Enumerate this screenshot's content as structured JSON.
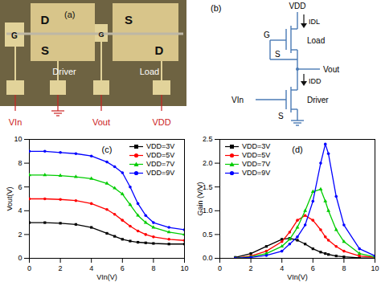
{
  "photo": {
    "label": "(a)",
    "driver": {
      "name": "Driver",
      "drain": "D",
      "source": "S",
      "gate": "G"
    },
    "load": {
      "name": "Load",
      "source": "S",
      "drain": "D",
      "gate": "G"
    },
    "terminals": {
      "input": "VIn",
      "output": "Vout",
      "supply": "VDD"
    }
  },
  "circuit": {
    "label": "(b)",
    "supply": "VDD",
    "load_current": "IDL",
    "load": {
      "name": "Load",
      "gate": "G",
      "source": "S"
    },
    "output": "Vout",
    "driver_current": "IDD",
    "driver": {
      "name": "Driver",
      "source": "S"
    },
    "input": "VIn"
  },
  "chart_data": [
    {
      "type": "line",
      "title": "(c)",
      "x_label": "VIn(V)",
      "y_label": "Vout(V)",
      "xlim": [
        0,
        10
      ],
      "xticks": [
        0,
        2,
        4,
        6,
        8,
        10
      ],
      "ylim": [
        0,
        10
      ],
      "yticks": [
        0,
        2,
        4,
        6,
        8,
        10
      ],
      "legend": "upper right",
      "x": [
        0,
        1,
        2,
        3,
        4,
        5,
        5.5,
        6,
        6.5,
        7,
        7.5,
        8,
        9,
        10
      ],
      "series": [
        {
          "name": "VDD=3V",
          "color": "#000000",
          "marker": "square",
          "values": [
            3.0,
            3.0,
            2.95,
            2.85,
            2.6,
            2.1,
            1.85,
            1.6,
            1.45,
            1.35,
            1.3,
            1.25,
            1.2,
            1.2
          ]
        },
        {
          "name": "VDD=5V",
          "color": "#ff0000",
          "marker": "circle",
          "values": [
            5.0,
            5.0,
            4.95,
            4.85,
            4.6,
            4.1,
            3.7,
            3.2,
            2.7,
            2.3,
            2.0,
            1.8,
            1.6,
            1.5
          ]
        },
        {
          "name": "VDD=7V",
          "color": "#00cc00",
          "marker": "triangle",
          "values": [
            7.0,
            7.0,
            6.95,
            6.85,
            6.7,
            6.3,
            5.9,
            5.4,
            4.5,
            3.6,
            3.0,
            2.6,
            2.2,
            2.0
          ]
        },
        {
          "name": "VDD=9V",
          "color": "#0000ff",
          "marker": "circle",
          "values": [
            9.0,
            9.0,
            8.9,
            8.8,
            8.6,
            8.1,
            7.7,
            7.2,
            6.0,
            4.6,
            3.6,
            3.0,
            2.6,
            2.4
          ]
        }
      ]
    },
    {
      "type": "line",
      "title": "(d)",
      "x_label": "VIn(V)",
      "y_label": "Gain (V/V)",
      "xlim": [
        0,
        10
      ],
      "xticks": [
        0,
        2,
        4,
        6,
        8,
        10
      ],
      "ylim": [
        0,
        2.5
      ],
      "yticks": [
        {
          "value": 0,
          "label": "0.0"
        },
        0.5,
        {
          "value": 1,
          "label": "1.0"
        },
        1.5,
        {
          "value": 2,
          "label": "2.0"
        },
        2.5
      ],
      "legend": "upper left",
      "x": [
        1,
        2,
        3,
        4,
        4.5,
        5,
        5.5,
        6,
        6.5,
        6.8,
        7,
        7.5,
        8,
        9,
        10
      ],
      "series": [
        {
          "name": "VDD=3V",
          "color": "#000000",
          "marker": "square",
          "values": [
            0.02,
            0.1,
            0.25,
            0.4,
            0.42,
            0.38,
            0.3,
            0.2,
            0.13,
            0.1,
            0.08,
            0.05,
            0.03,
            0.01,
            0.0
          ]
        },
        {
          "name": "VDD=5V",
          "color": "#ff0000",
          "marker": "circle",
          "values": [
            0.0,
            0.05,
            0.15,
            0.35,
            0.55,
            0.8,
            0.9,
            0.8,
            0.6,
            0.45,
            0.38,
            0.25,
            0.15,
            0.05,
            0.02
          ]
        },
        {
          "name": "VDD=7V",
          "color": "#00cc00",
          "marker": "triangle",
          "values": [
            0.0,
            0.03,
            0.1,
            0.25,
            0.4,
            0.65,
            1.0,
            1.4,
            1.45,
            1.2,
            1.0,
            0.6,
            0.35,
            0.1,
            0.03
          ]
        },
        {
          "name": "VDD=9V",
          "color": "#0000ff",
          "marker": "circle",
          "values": [
            0.0,
            0.02,
            0.06,
            0.15,
            0.3,
            0.45,
            0.7,
            1.2,
            2.0,
            2.4,
            2.2,
            1.3,
            0.7,
            0.2,
            0.05
          ]
        }
      ]
    }
  ]
}
